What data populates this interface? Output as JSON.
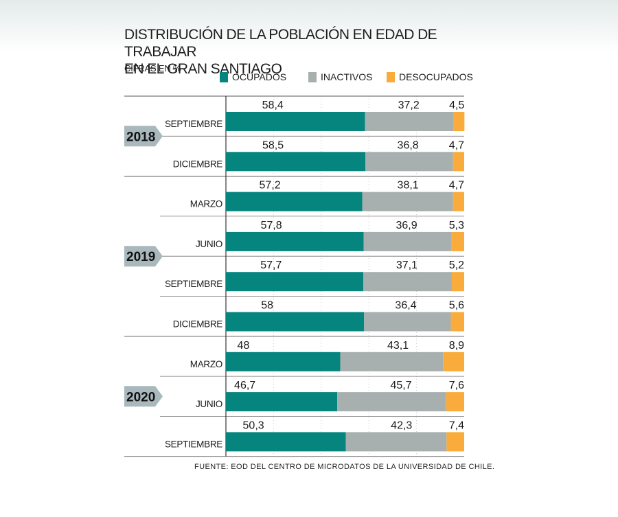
{
  "title_line1": "DISTRIBUCIÓN DE LA POBLACIÓN EN EDAD DE TRABAJAR",
  "title_line2": "EN EL GRAN SANTIAGO",
  "subtitle": "CIFRAS EN %",
  "source": "FUENTE: EOD DEL CENTRO DE MICRODATOS DE LA UNIVERSIDAD DE CHILE.",
  "colors": {
    "ocupados": "#06857f",
    "inactivos": "#a7b0af",
    "desocupados": "#f9ac3b",
    "year_badge": "#a9b8bd",
    "gridline": "#777777"
  },
  "chart_data": {
    "type": "bar",
    "orientation": "horizontal",
    "stacked": true,
    "xlim": [
      0,
      100
    ],
    "legend_position": "top",
    "year_groups": [
      {
        "year": "2018",
        "months": [
          "SEPTIEMBRE",
          "DICIEMBRE"
        ]
      },
      {
        "year": "2019",
        "months": [
          "MARZO",
          "JUNIO",
          "SEPTIEMBRE",
          "DICIEMBRE"
        ]
      },
      {
        "year": "2020",
        "months": [
          "MARZO",
          "JUNIO",
          "SEPTIEMBRE"
        ]
      }
    ],
    "categories": [
      "SEPTIEMBRE",
      "DICIEMBRE",
      "MARZO",
      "JUNIO",
      "SEPTIEMBRE",
      "DICIEMBRE",
      "MARZO",
      "JUNIO",
      "SEPTIEMBRE"
    ],
    "series": [
      {
        "name": "OCUPADOS",
        "values": [
          58.4,
          58.5,
          57.2,
          57.8,
          57.7,
          58,
          48,
          46.7,
          50.3
        ],
        "labels": [
          "58,4",
          "58,5",
          "57,2",
          "57,8",
          "57,7",
          "58",
          "48",
          "46,7",
          "50,3"
        ]
      },
      {
        "name": "INACTIVOS",
        "values": [
          37.2,
          36.8,
          38.1,
          36.9,
          37.1,
          36.4,
          43.1,
          45.7,
          42.3
        ],
        "labels": [
          "37,2",
          "36,8",
          "38,1",
          "36,9",
          "37,1",
          "36,4",
          "43,1",
          "45,7",
          "42,3"
        ]
      },
      {
        "name": "DESOCUPADOS",
        "values": [
          4.5,
          4.7,
          4.7,
          5.3,
          5.2,
          5.6,
          8.9,
          7.6,
          7.4
        ],
        "labels": [
          "4,5",
          "4,7",
          "4,7",
          "5,3",
          "5,2",
          "5,6",
          "8,9",
          "7,6",
          "7,4"
        ]
      }
    ]
  }
}
